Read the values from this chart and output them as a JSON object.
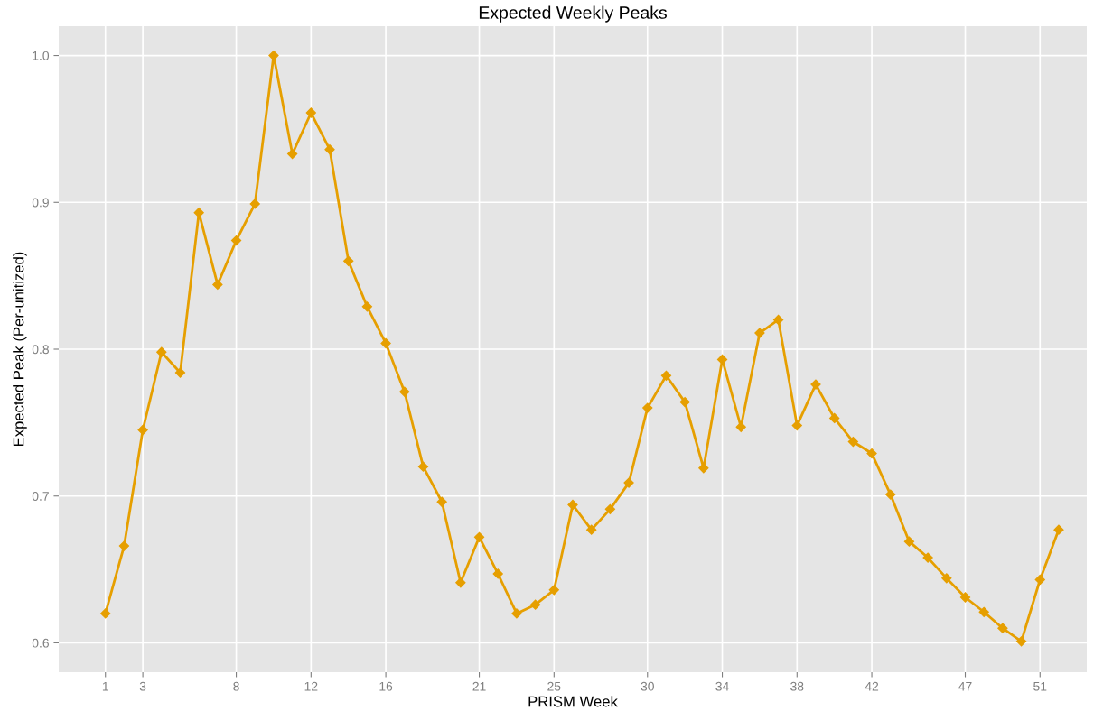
{
  "chart_data": {
    "type": "line",
    "title": "Expected Weekly Peaks",
    "xlabel": "PRISM Week",
    "ylabel": "Expected Peak (Per-unitized)",
    "x": [
      1,
      2,
      3,
      4,
      5,
      6,
      7,
      8,
      9,
      10,
      11,
      12,
      13,
      14,
      15,
      16,
      17,
      18,
      19,
      20,
      21,
      22,
      23,
      24,
      25,
      26,
      27,
      28,
      29,
      30,
      31,
      32,
      33,
      34,
      35,
      36,
      37,
      38,
      39,
      40,
      41,
      42,
      43,
      44,
      45,
      46,
      47,
      48,
      49,
      50,
      51,
      52
    ],
    "series": [
      {
        "color": "#e69f00",
        "values": [
          0.62,
          0.666,
          0.745,
          0.798,
          0.784,
          0.893,
          0.844,
          0.874,
          0.899,
          1.0,
          0.933,
          0.961,
          0.936,
          0.86,
          0.829,
          0.804,
          0.771,
          0.72,
          0.696,
          0.641,
          0.672,
          0.647,
          0.62,
          0.626,
          0.636,
          0.694,
          0.677,
          0.691,
          0.709,
          0.76,
          0.782,
          0.764,
          0.719,
          0.793,
          0.747,
          0.811,
          0.82,
          0.748,
          0.776,
          0.753,
          0.737,
          0.729,
          0.701,
          0.669,
          0.658,
          0.644,
          0.631,
          0.621,
          0.61,
          0.601,
          0.643,
          0.677
        ]
      }
    ],
    "xlim": [
      -1.5,
      53.5
    ],
    "ylim": [
      0.58,
      1.02
    ],
    "xticks": [
      1,
      3,
      8,
      12,
      16,
      21,
      25,
      30,
      34,
      38,
      42,
      47,
      51
    ],
    "yticks": [
      {
        "value": 0.6,
        "label": "0.6"
      },
      {
        "value": 0.7,
        "label": "0.7"
      },
      {
        "value": 0.8,
        "label": "0.8"
      },
      {
        "value": 0.9,
        "label": "0.9"
      },
      {
        "value": 1.0,
        "label": "1.0"
      }
    ],
    "grid": true,
    "marker": "diamond",
    "line_style": "solid",
    "legend": false
  }
}
